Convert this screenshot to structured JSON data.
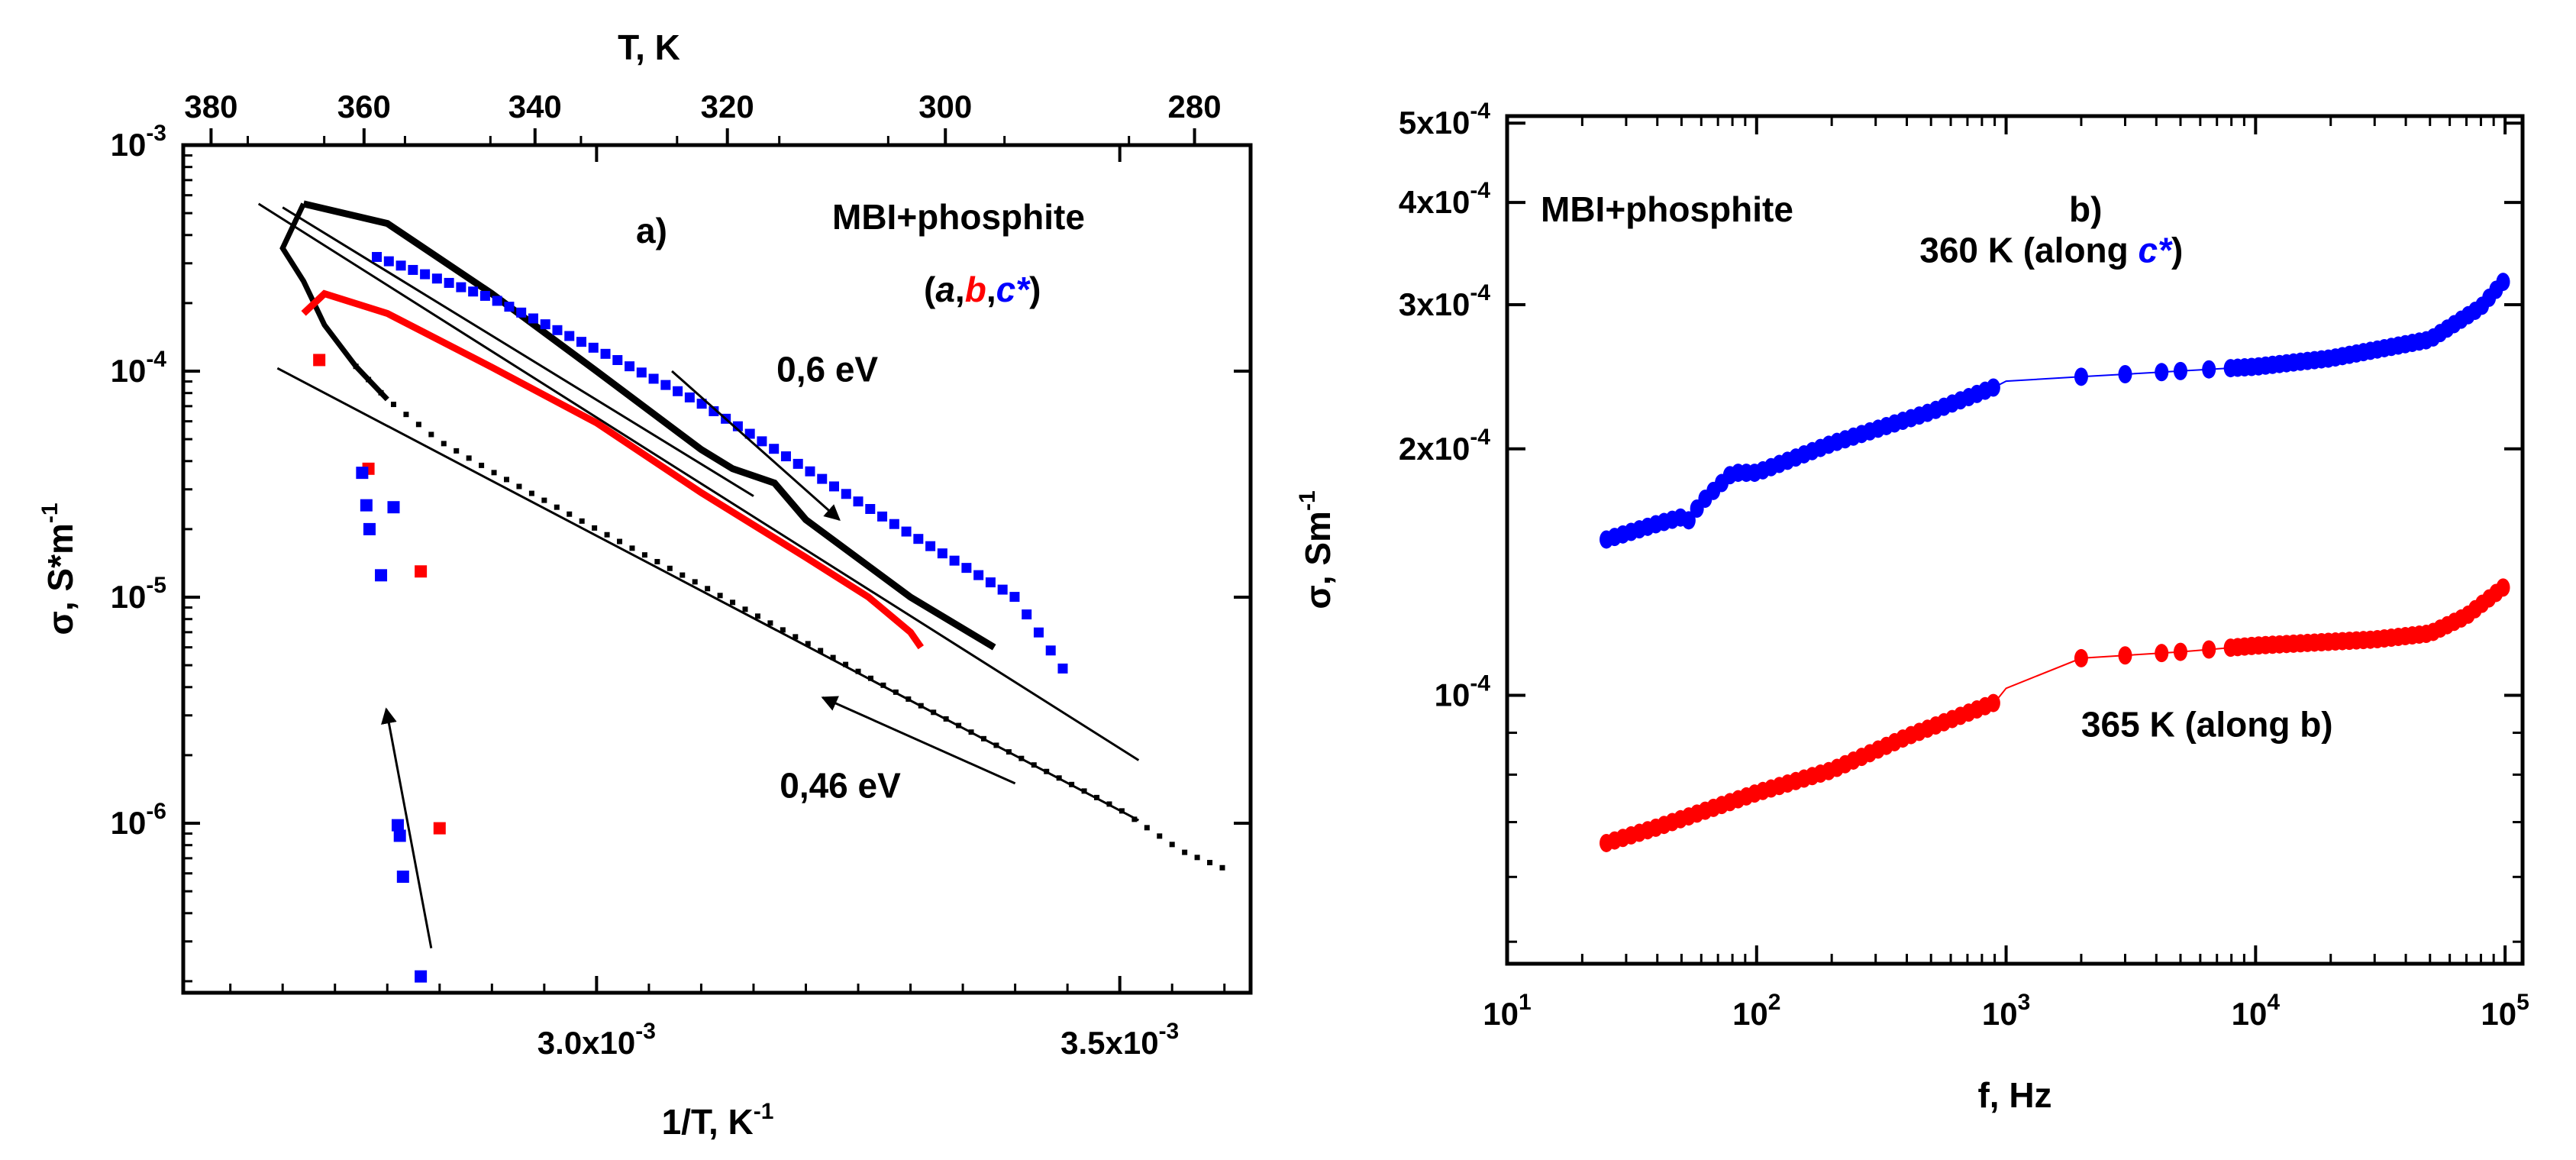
{
  "chart_data": [
    {
      "id": "a",
      "type": "scatter",
      "panel_label": "a)",
      "title_line1": "MBI+phosphite",
      "title_line2": {
        "open": "(",
        "a": "a",
        "sep1": ",",
        "b": "b",
        "sep2": ",",
        "c": "c*",
        "close": ")"
      },
      "xlabel": {
        "base": "1/T, K",
        "exp": "-1"
      },
      "ylabel": {
        "base": "σ, S*m",
        "exp": "-1"
      },
      "top_xlabel": "T, K",
      "xlim": [
        0.002605,
        0.003625
      ],
      "ylim_log10": [
        -6.75,
        -3
      ],
      "yscale": "log",
      "x_ticks": [
        {
          "value": 0.003,
          "mant": "3.0x10",
          "exp": "-3"
        },
        {
          "value": 0.0035,
          "mant": "3.5x10",
          "exp": "-3"
        }
      ],
      "y_ticks": [
        {
          "log": -3,
          "base": "10",
          "exp": "-3"
        },
        {
          "log": -4,
          "base": "10",
          "exp": "-4"
        },
        {
          "log": -5,
          "base": "10",
          "exp": "-5"
        },
        {
          "log": -6,
          "base": "10",
          "exp": "-6"
        }
      ],
      "top_ticks": [
        {
          "T": 380,
          "label": "380"
        },
        {
          "T": 360,
          "label": "360"
        },
        {
          "T": 340,
          "label": "340"
        },
        {
          "T": 320,
          "label": "320"
        },
        {
          "T": 300,
          "label": "300"
        },
        {
          "T": 280,
          "label": "280"
        }
      ],
      "annotations": [
        {
          "text": "0,6 eV",
          "x": 0.003172,
          "y": 9e-05
        },
        {
          "text": "0,46 eV",
          "x": 0.003175,
          "y": 1.3e-06
        }
      ],
      "arrows": [
        {
          "name": "arrow-0-6-ev",
          "from": [
            0.003072,
            0.0001
          ],
          "to": [
            0.003232,
            2.2e-05
          ]
        },
        {
          "name": "arrow-0-46-ev",
          "from": [
            0.0034,
            1.5e-06
          ],
          "to": [
            0.003216,
            3.6e-06
          ]
        },
        {
          "name": "arrow-heating",
          "from": [
            0.002842,
            2.8e-07
          ],
          "to": [
            0.002799,
            3.2e-06
          ]
        }
      ],
      "fit_lines": [
        {
          "name": "fit-line-0-6-ev-a",
          "x": [
            0.002677,
            0.003518
          ],
          "y": [
            0.00055,
            1.9e-06
          ]
        },
        {
          "name": "fit-line-0-6-ev-b",
          "x": [
            0.0027,
            0.00315
          ],
          "y": [
            0.00053,
            2.8e-05
          ]
        },
        {
          "name": "fit-line-0-46-ev",
          "x": [
            0.002695,
            0.003518
          ],
          "y": [
            0.000103,
            1.03e-06
          ]
        }
      ],
      "series": [
        {
          "name": "a (black)",
          "color": "#000000",
          "heating": [
            [
              0.00272,
              0.00055
            ],
            [
              0.0027,
              0.00035
            ],
            [
              0.00272,
              0.00025
            ],
            [
              0.00274,
              0.00016
            ],
            [
              0.00277,
              0.000105
            ],
            [
              0.0028,
              7.5e-05
            ],
            [
              0.00285,
              4.9e-05
            ],
            [
              0.0029,
              3.6e-05
            ],
            [
              0.003,
              2e-05
            ],
            [
              0.0031,
              1.13e-05
            ],
            [
              0.0032,
              6.3e-06
            ],
            [
              0.0033,
              3.5e-06
            ],
            [
              0.0034,
              2e-06
            ],
            [
              0.0035,
              1.15e-06
            ],
            [
              0.00356,
              7.5e-07
            ],
            [
              0.0036,
              6.3e-07
            ]
          ],
          "cooling": [
            [
              0.00272,
              0.00055
            ],
            [
              0.0028,
              0.00045
            ],
            [
              0.0029,
              0.00022
            ],
            [
              0.003,
              0.0001
            ],
            [
              0.0031,
              4.5e-05
            ],
            [
              0.00313,
              3.7e-05
            ],
            [
              0.00317,
              3.2e-05
            ],
            [
              0.0032,
              2.2e-05
            ],
            [
              0.0033,
              1e-05
            ],
            [
              0.00338,
              6e-06
            ]
          ]
        },
        {
          "name": "b (red)",
          "color": "#ff0000",
          "cooling": [
            [
              0.00272,
              0.00018
            ],
            [
              0.00274,
              0.00022
            ],
            [
              0.0028,
              0.00018
            ],
            [
              0.0029,
              0.000104
            ],
            [
              0.003,
              5.9e-05
            ],
            [
              0.0031,
              2.9e-05
            ],
            [
              0.0032,
              1.5e-05
            ],
            [
              0.00326,
              1e-05
            ],
            [
              0.0033,
              7e-06
            ],
            [
              0.00331,
              6e-06
            ]
          ],
          "scatter": [
            [
              0.002735,
              0.000112
            ],
            [
              0.002782,
              3.7e-05
            ],
            [
              0.002832,
              1.3e-05
            ],
            [
              0.00285,
              9.5e-07
            ]
          ]
        },
        {
          "name": "c* (blue)",
          "color": "#0000ff",
          "cooling": [
            [
              0.00279,
              0.00032
            ],
            [
              0.0029,
              0.00021
            ],
            [
              0.003,
              0.000125
            ],
            [
              0.0031,
              7.2e-05
            ],
            [
              0.0032,
              3.7e-05
            ],
            [
              0.0033,
              1.9e-05
            ],
            [
              0.0034,
              1e-05
            ],
            [
              0.00345,
              4.5e-06
            ]
          ],
          "scatter": [
            [
              0.002776,
              3.55e-05
            ],
            [
              0.00278,
              2.55e-05
            ],
            [
              0.002783,
              2e-05
            ],
            [
              0.002794,
              1.25e-05
            ],
            [
              0.002806,
              2.5e-05
            ],
            [
              0.00281,
              9.8e-07
            ],
            [
              0.002812,
              8.8e-07
            ],
            [
              0.002815,
              5.8e-07
            ],
            [
              0.002832,
              2.1e-07
            ]
          ]
        }
      ]
    },
    {
      "id": "b",
      "type": "scatter",
      "panel_label": "b)",
      "title": "MBI+phosphite",
      "xlabel": "f, Hz",
      "ylabel": {
        "base": "σ, Sm",
        "exp": "-1"
      },
      "xscale": "log",
      "yscale": "log",
      "xlim_log10": [
        1,
        5.07
      ],
      "ylim": [
        4.7e-05,
        0.00051
      ],
      "x_ticks": [
        {
          "log": 1,
          "base": "10",
          "exp": "1"
        },
        {
          "log": 2,
          "base": "10",
          "exp": "2"
        },
        {
          "log": 3,
          "base": "10",
          "exp": "3"
        },
        {
          "log": 4,
          "base": "10",
          "exp": "4"
        },
        {
          "log": 5,
          "base": "10",
          "exp": "5"
        }
      ],
      "y_ticks": [
        {
          "value": 0.0001,
          "mant": "10",
          "exp": "-4"
        },
        {
          "value": 0.0002,
          "mant": "2x10",
          "exp": "-4"
        },
        {
          "value": 0.0003,
          "mant": "3x10",
          "exp": "-4"
        },
        {
          "value": 0.0004,
          "mant": "4x10",
          "exp": "-4"
        },
        {
          "value": 0.0005,
          "mant": "5x10",
          "exp": "-4"
        }
      ],
      "series": [
        {
          "name": "360 K (along c*)",
          "label_prefix": "360 K (along ",
          "label_em": "c*",
          "label_suffix": ")",
          "label_at": [
            450,
            0.000338
          ],
          "color": "#0000ff",
          "control_points": [
            [
              25,
              0.000155
            ],
            [
              40,
              0.000162
            ],
            [
              50,
              0.000165
            ],
            [
              53,
              0.000163
            ],
            [
              60,
              0.000172
            ],
            [
              80,
              0.000187
            ],
            [
              100,
              0.000187
            ],
            [
              200,
              0.000203
            ],
            [
              500,
              0.000222
            ],
            [
              900,
              0.000238
            ],
            [
              1000,
              0.000242
            ],
            [
              2000,
              0.000245
            ],
            [
              10000,
              0.000252
            ],
            [
              20000,
              0.000258
            ],
            [
              50000,
              0.000272
            ],
            [
              80000,
              0.000298
            ],
            [
              100000,
              0.000322
            ]
          ]
        },
        {
          "name": "365 K (along b)",
          "label": "365 K (along b)",
          "label_at": [
            2000,
            8.9e-05
          ],
          "color": "#ff0000",
          "control_points": [
            [
              25,
              6.6e-05
            ],
            [
              40,
              6.9e-05
            ],
            [
              60,
              7.2e-05
            ],
            [
              100,
              7.6e-05
            ],
            [
              200,
              8.1e-05
            ],
            [
              400,
              8.9e-05
            ],
            [
              900,
              9.8e-05
            ],
            [
              1000,
              0.000102
            ],
            [
              2000,
              0.000111
            ],
            [
              5000,
              0.000113
            ],
            [
              10000,
              0.000115
            ],
            [
              30000,
              0.000117
            ],
            [
              50000,
              0.000119
            ],
            [
              70000,
              0.000125
            ],
            [
              100000,
              0.000136
            ]
          ]
        }
      ]
    }
  ]
}
